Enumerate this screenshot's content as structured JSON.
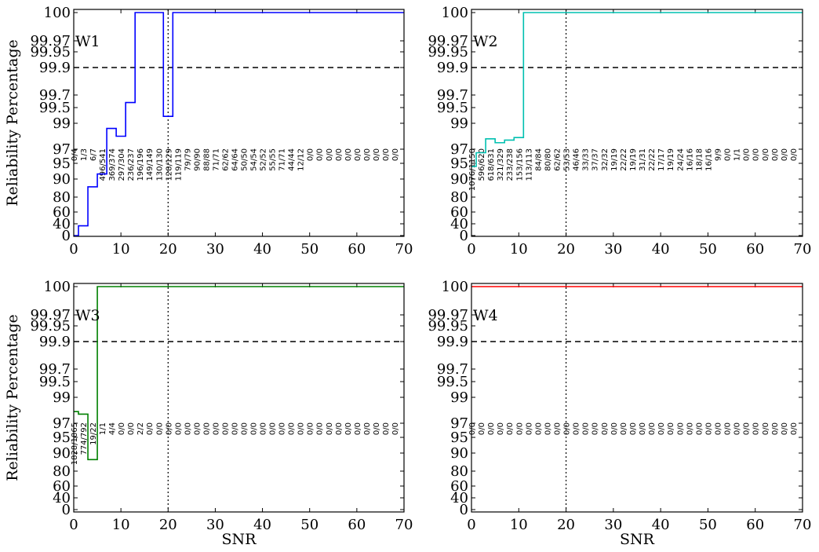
{
  "chart_data": [
    {
      "type": "line",
      "panel": "W1",
      "color": "#0000ff",
      "ylabel": "Reliability Percentage",
      "xlabel": "",
      "x_steps": [
        0,
        1,
        3,
        5,
        7,
        9,
        11,
        13,
        19,
        21,
        70
      ],
      "reliability": [
        0,
        33.3,
        85.7,
        91.6,
        98.6,
        98.0,
        99.58,
        100,
        99.22,
        100
      ],
      "annotations": [
        "0/4",
        "1/3",
        "6/7",
        "496/541",
        "369/374",
        "297/304",
        "236/237",
        "196/196",
        "149/149",
        "130/130",
        "128/129",
        "119/119",
        "79/79",
        "90/90",
        "88/88",
        "71/71",
        "62/62",
        "64/64",
        "50/50",
        "54/54",
        "52/52",
        "55/55",
        "71/71",
        "44/44",
        "12/12",
        "0/0",
        "0/0",
        "0/0",
        "0/0",
        "0/0",
        "0/0",
        "0/0",
        "0/0",
        "0/0",
        "0/0"
      ]
    },
    {
      "type": "line",
      "panel": "W2",
      "color": "#00c0b0",
      "ylabel": "",
      "xlabel": "",
      "x_steps": [
        0,
        1,
        3,
        5,
        7,
        9,
        11,
        70
      ],
      "reliability": [
        94.0,
        96.5,
        97.8,
        97.5,
        97.7,
        97.9,
        100
      ],
      "annotations": [
        "1076/1150",
        "596/620",
        "618/631",
        "321/329",
        "233/238",
        "153/156",
        "113/113",
        "84/84",
        "80/80",
        "62/62",
        "53/53",
        "46/46",
        "33/33",
        "37/37",
        "32/32",
        "19/19",
        "22/22",
        "19/19",
        "31/31",
        "22/22",
        "17/17",
        "19/19",
        "24/24",
        "16/16",
        "18/18",
        "16/16",
        "9/9",
        "0/0",
        "1/1",
        "0/0",
        "0/0",
        "0/0",
        "0/0",
        "0/0",
        "0/0"
      ]
    },
    {
      "type": "line",
      "panel": "W3",
      "color": "#008000",
      "ylabel": "Reliability Percentage",
      "xlabel": "SNR",
      "x_steps": [
        0,
        1,
        3,
        5,
        70
      ],
      "reliability": [
        97.9,
        97.7,
        86.4,
        100
      ],
      "annotations": [
        "1828/1865",
        "774/792",
        "19/22",
        "1/1",
        "4/4",
        "0/0",
        "0/0",
        "2/2",
        "0/0",
        "0/0",
        "0/0",
        "0/0",
        "0/0",
        "0/0",
        "0/0",
        "0/0",
        "0/0",
        "0/0",
        "0/0",
        "0/0",
        "0/0",
        "0/0",
        "0/0",
        "0/0",
        "0/0",
        "0/0",
        "0/0",
        "0/0",
        "0/0",
        "0/0",
        "0/0",
        "0/0",
        "0/0",
        "0/0",
        "0/0"
      ]
    },
    {
      "type": "line",
      "panel": "W4",
      "color": "#ff0000",
      "ylabel": "",
      "xlabel": "SNR",
      "x_steps": [
        0,
        70
      ],
      "reliability": [
        100
      ],
      "annotations": [
        "0/0",
        "0/0",
        "0/0",
        "0/0",
        "0/0",
        "0/0",
        "0/0",
        "0/0",
        "0/0",
        "0/0",
        "0/0",
        "0/0",
        "0/0",
        "0/0",
        "0/0",
        "0/0",
        "0/0",
        "0/0",
        "0/0",
        "0/0",
        "0/0",
        "0/0",
        "0/0",
        "0/0",
        "0/0",
        "0/0",
        "0/0",
        "0/0",
        "0/0",
        "0/0",
        "0/0",
        "0/0",
        "0/0",
        "0/0",
        "0/0"
      ]
    }
  ],
  "axes": {
    "xlim": [
      0,
      70
    ],
    "xticks": [
      0,
      10,
      20,
      30,
      40,
      50,
      60,
      70
    ],
    "yticks": [
      "0",
      "40",
      "60",
      "80",
      "90",
      "95",
      "97",
      "99",
      "99.5",
      "99.7",
      "99.9",
      "99.95",
      "99.97",
      "100"
    ],
    "threshold_hline": 99.9,
    "threshold_vline": 20
  }
}
